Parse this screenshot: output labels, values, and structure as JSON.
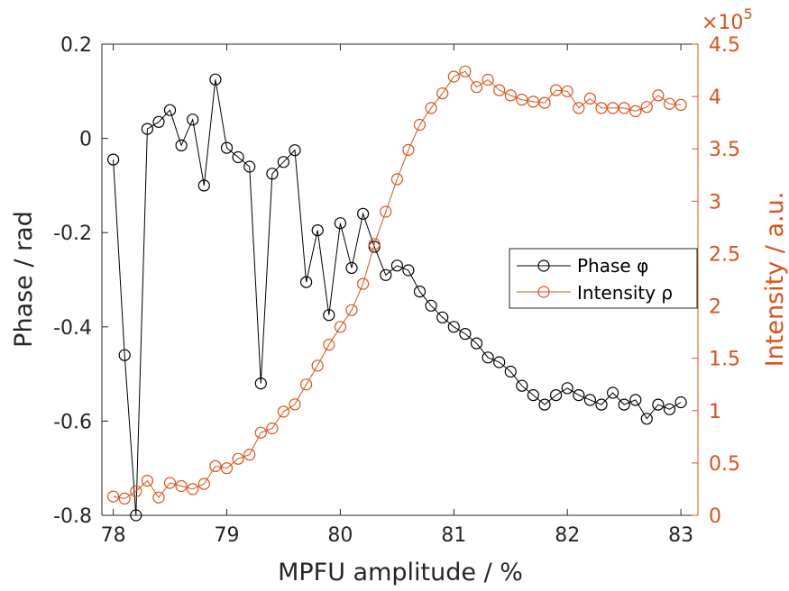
{
  "chart_data": {
    "type": "line",
    "xlabel": "MPFU amplitude / %",
    "ylabel_left": "Phase / rad",
    "ylabel_right": "Intensity / a.u.",
    "right_axis_exponent": "×10",
    "right_axis_exponent_power": "5",
    "xlim": [
      77.9,
      83.15
    ],
    "ylim_left": [
      -0.8,
      0.2
    ],
    "ylim_right": [
      0,
      450000
    ],
    "x_ticks": [
      78,
      79,
      80,
      81,
      82,
      83
    ],
    "x_tick_labels": [
      "78",
      "79",
      "80",
      "81",
      "82",
      "83"
    ],
    "y_left_ticks": [
      0.2,
      0,
      -0.2,
      -0.4,
      -0.6,
      -0.8
    ],
    "y_left_tick_labels": [
      "0.2",
      "0",
      "-0.2",
      "-0.4",
      "-0.6",
      "-0.8"
    ],
    "y_right_ticks": [
      0,
      50000,
      100000,
      150000,
      200000,
      250000,
      300000,
      350000,
      400000,
      450000
    ],
    "y_right_tick_labels": [
      "0",
      "0.5",
      "1",
      "1.5",
      "2",
      "2.5",
      "3",
      "3.5",
      "4",
      "4.5"
    ],
    "legend_position": "center-right",
    "x": [
      78.0,
      78.1,
      78.2,
      78.3,
      78.4,
      78.5,
      78.6,
      78.7,
      78.8,
      78.9,
      79.0,
      79.1,
      79.2,
      79.3,
      79.4,
      79.5,
      79.6,
      79.7,
      79.8,
      79.9,
      80.0,
      80.1,
      80.2,
      80.3,
      80.4,
      80.5,
      80.6,
      80.7,
      80.8,
      80.9,
      81.0,
      81.1,
      81.2,
      81.3,
      81.4,
      81.5,
      81.6,
      81.7,
      81.8,
      81.9,
      82.0,
      82.1,
      82.2,
      82.3,
      82.4,
      82.5,
      82.6,
      82.7,
      82.8,
      82.9,
      83.0
    ],
    "series": [
      {
        "name": "Phase φ",
        "axis": "left",
        "color": "#000000",
        "values": [
          -0.045,
          -0.46,
          -0.8,
          0.02,
          0.035,
          0.06,
          -0.015,
          0.04,
          -0.1,
          0.125,
          -0.02,
          -0.04,
          -0.06,
          -0.52,
          -0.075,
          -0.05,
          -0.025,
          -0.305,
          -0.195,
          -0.375,
          -0.18,
          -0.275,
          -0.16,
          -0.23,
          -0.29,
          -0.27,
          -0.28,
          -0.325,
          -0.355,
          -0.38,
          -0.4,
          -0.415,
          -0.435,
          -0.465,
          -0.475,
          -0.495,
          -0.525,
          -0.545,
          -0.565,
          -0.545,
          -0.53,
          -0.545,
          -0.555,
          -0.565,
          -0.54,
          -0.565,
          -0.555,
          -0.595,
          -0.565,
          -0.575,
          -0.56
        ]
      },
      {
        "name": "Intensity ρ",
        "axis": "right",
        "color": "#D95319",
        "values": [
          18000,
          16000,
          23000,
          33000,
          17000,
          31000,
          28000,
          25000,
          30000,
          47000,
          45000,
          54000,
          58000,
          79000,
          83000,
          99000,
          106000,
          125000,
          143000,
          163000,
          180000,
          196000,
          221000,
          259000,
          290000,
          321000,
          349000,
          373000,
          389000,
          403000,
          419000,
          424000,
          409000,
          416000,
          406000,
          401000,
          397000,
          395000,
          394000,
          406000,
          405000,
          389000,
          398000,
          389000,
          389000,
          389000,
          386000,
          390000,
          401000,
          393000,
          392000
        ]
      }
    ]
  }
}
